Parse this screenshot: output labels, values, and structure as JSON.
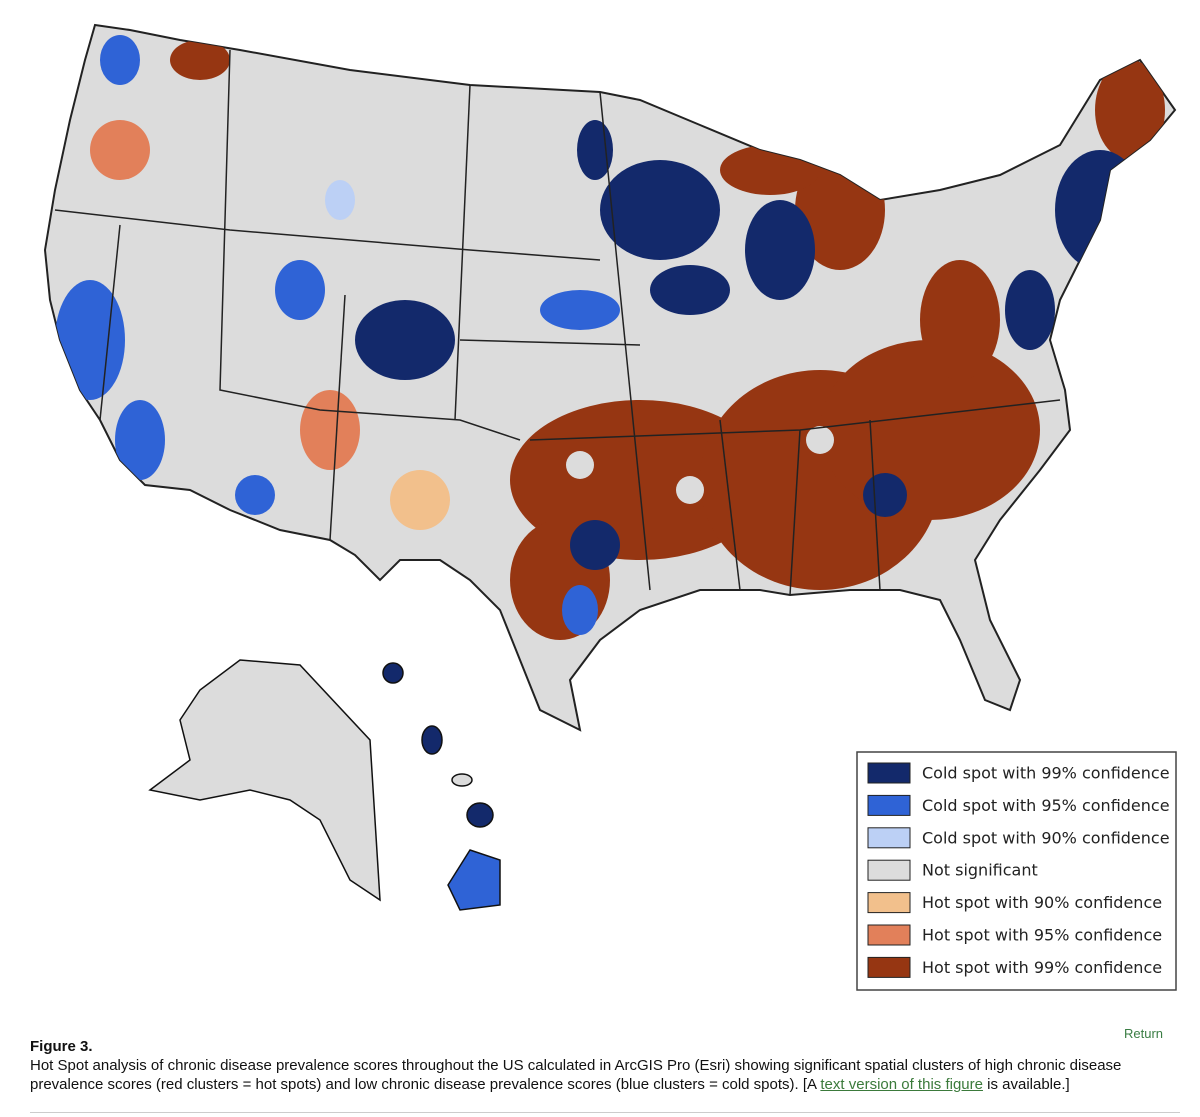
{
  "legend": {
    "items": [
      {
        "label": "Cold spot with 99% confidence",
        "color": "#13296b"
      },
      {
        "label": "Cold spot with 95% confidence",
        "color": "#2f63d6"
      },
      {
        "label": "Cold spot with 90% confidence",
        "color": "#bcd0f5"
      },
      {
        "label": "Not significant",
        "color": "#dcdcdc"
      },
      {
        "label": "Hot spot with 90% confidence",
        "color": "#f2c08c"
      },
      {
        "label": "Hot spot with 95% confidence",
        "color": "#e2805a"
      },
      {
        "label": "Hot spot with 99% confidence",
        "color": "#963612"
      }
    ]
  },
  "figure": {
    "label": "Figure 3.",
    "caption_before": "Hot Spot analysis of chronic disease prevalence scores throughout the US calculated in ArcGIS Pro (Esri) showing significant spatial clusters of high chronic disease prevalence scores (red clusters = hot spots) and low chronic disease prevalence scores (blue clusters = cold spots). [A ",
    "link_text": "text version of this figure",
    "caption_after": " is available.]"
  },
  "return_button": "Return"
}
